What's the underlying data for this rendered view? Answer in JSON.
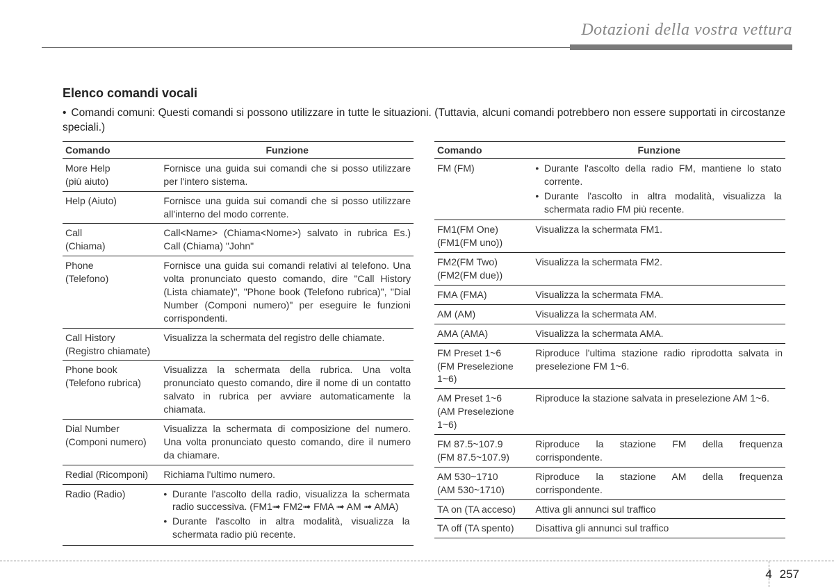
{
  "header": {
    "title": "Dotazioni della vostra vettura"
  },
  "section": {
    "title": "Elenco comandi vocali"
  },
  "intro": "Comandi comuni: Questi comandi si possono utilizzare in tutte le situazioni. (Tuttavia, alcuni comandi potrebbero non essere supportati in circostanze speciali.)",
  "headers": {
    "cmd": "Comando",
    "fn": "Funzione"
  },
  "left_rows": [
    {
      "cmd": "More Help\n(più aiuto)",
      "fn": "Fornisce una guida sui comandi che si posso utilizzare per l'intero sistema."
    },
    {
      "cmd": "Help (Aiuto)",
      "fn": "Fornisce una guida sui comandi che si posso utilizzare all'interno del modo corrente."
    },
    {
      "cmd": "Call<Name>\n(Chiama<Nome>)",
      "fn": "Call<Name> (Chiama<Nome>) salvato in rubrica Es.) Call (Chiama) \"John\""
    },
    {
      "cmd": "Phone\n(Telefono)",
      "fn": "Fornisce una guida sui comandi relativi al telefono. Una volta pronunciato questo comando, dire \"Call History (Lista chiamate)\", \"Phone book (Telefono rubrica)\", \"Dial Number (Componi numero)\" per eseguire le funzioni corrispondenti."
    },
    {
      "cmd": "Call History\n(Registro chiamate)",
      "fn": "Visualizza la schermata del registro delle chiamate."
    },
    {
      "cmd": "Phone book\n(Telefono rubrica)",
      "fn": "Visualizza la schermata della rubrica. Una volta pronunciato questo comando, dire il nome di un contatto salvato in rubrica per avviare automaticamente la chiamata."
    },
    {
      "cmd": "Dial Number\n(Componi numero)",
      "fn": "Visualizza la schermata di composizione del numero. Una volta pronunciato questo comando, dire il numero da chiamare."
    },
    {
      "cmd": "Redial (Ricomponi)",
      "fn": "Richiama l'ultimo numero."
    },
    {
      "cmd": "Radio (Radio)",
      "fn_bullets": [
        "Durante l'ascolto della radio, visualizza la schermata radio successiva. (FM1➟ FM2➟ FMA ➟ AM ➟ AMA)",
        "Durante l'ascolto in altra modalità, visualizza la schermata radio più recente."
      ]
    }
  ],
  "right_rows": [
    {
      "cmd": "FM (FM)",
      "fn_bullets": [
        "Durante l'ascolto della radio FM, mantiene lo stato corrente.",
        "Durante l'ascolto in altra modalità, visualizza la schermata radio FM più recente."
      ]
    },
    {
      "cmd": "FM1(FM One)\n(FM1(FM uno))",
      "fn": "Visualizza la schermata FM1."
    },
    {
      "cmd": "FM2(FM Two)\n(FM2(FM due))",
      "fn": "Visualizza la schermata FM2."
    },
    {
      "cmd": "FMA (FMA)",
      "fn": "Visualizza la schermata FMA."
    },
    {
      "cmd": "AM (AM)",
      "fn": "Visualizza la schermata AM."
    },
    {
      "cmd": "AMA (AMA)",
      "fn": "Visualizza la schermata AMA."
    },
    {
      "cmd": "FM Preset 1~6\n(FM Preselezione 1~6)",
      "fn": "Riproduce l'ultima stazione radio riprodotta salvata in preselezione FM 1~6."
    },
    {
      "cmd": "AM Preset 1~6\n(AM Preselezione 1~6)",
      "fn": "Riproduce la stazione salvata in preselezione AM 1~6."
    },
    {
      "cmd": "FM 87.5~107.9\n(FM 87.5~107.9)",
      "fn": "Riproduce la stazione FM della frequenza corrispondente."
    },
    {
      "cmd": "AM 530~1710\n(AM 530~1710)",
      "fn": "Riproduce la stazione AM della frequenza corrispondente."
    },
    {
      "cmd": "TA on (TA acceso)",
      "fn": "Attiva gli annunci sul traffico"
    },
    {
      "cmd": "TA off (TA spento)",
      "fn": "Disattiva gli annunci sul traffico"
    }
  ],
  "footer": {
    "section": "4",
    "page": "257"
  }
}
